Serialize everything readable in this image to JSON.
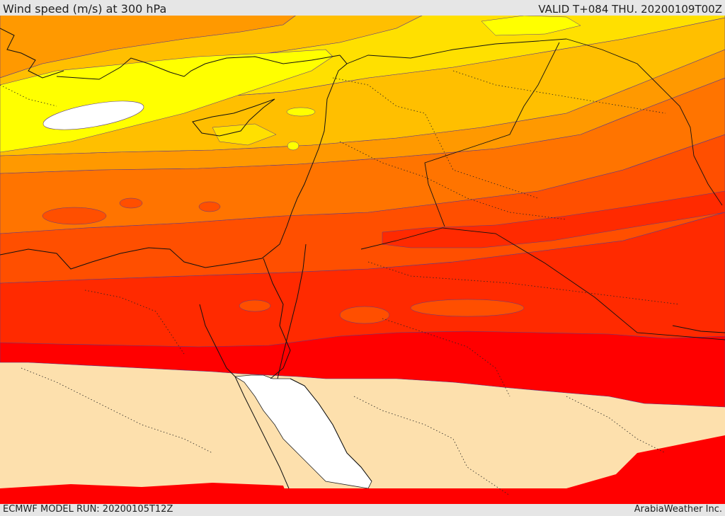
{
  "header": {
    "title": "Wind speed (m/s) at 300 hPa",
    "valid_time": "VALID T+084 THU. 20200109T00Z"
  },
  "footer": {
    "model_run": "ECMWF MODEL RUN: 20200105T12Z",
    "provider": "ArabiaWeather Inc."
  },
  "map": {
    "field": "wind speed",
    "level_hpa": 300,
    "units": "m/s",
    "band_colors": {
      "calm_land": "#fde0ad",
      "calm_sea": "#ffffff",
      "red": "#ff0000",
      "red_orange": "#ff2a00",
      "orange_red": "#ff4f00",
      "orange": "#ff7400",
      "light_orange": "#ff9900",
      "amber": "#ffbf00",
      "gold": "#ffe000",
      "yellow": "#ffff00",
      "jet_core": "#ffffff"
    }
  }
}
